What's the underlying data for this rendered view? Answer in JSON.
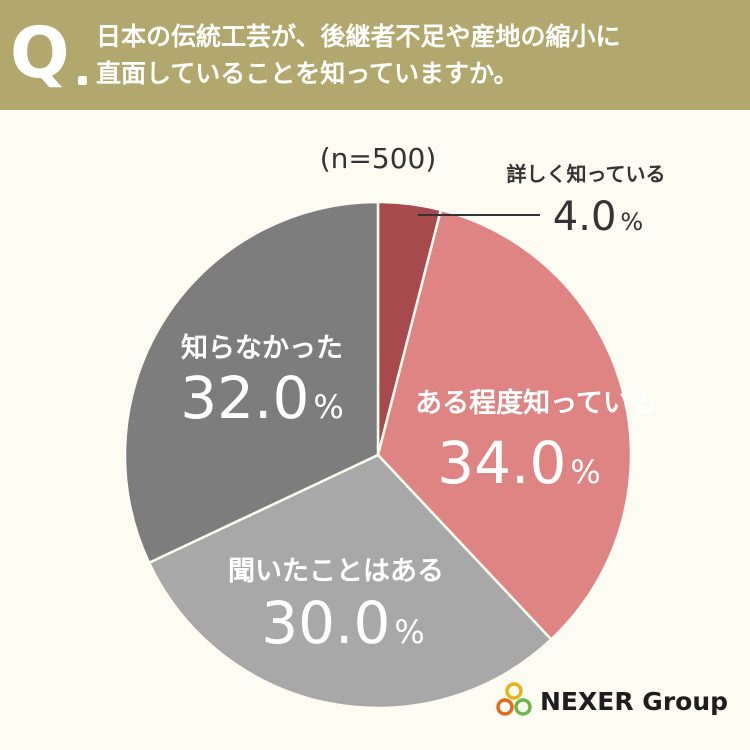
{
  "header": {
    "q_mark": "Q",
    "question_line1": "日本の伝統工芸が、後継者不足や産地の縮小に",
    "question_line2": "直面していることを知っていますか。"
  },
  "chart_data": {
    "type": "pie",
    "sample_size": "(n=500)",
    "slices": [
      {
        "label": "詳しく知っている",
        "value": 4.0,
        "display": "4.0",
        "color": "#a74a4d"
      },
      {
        "label": "ある程度知っている",
        "value": 34.0,
        "display": "34.0",
        "color": "#de8584"
      },
      {
        "label": "聞いたことはある",
        "value": 30.0,
        "display": "30.0",
        "color": "#a8a8a8"
      },
      {
        "label": "知らなかった",
        "value": 32.0,
        "display": "32.0",
        "color": "#7d7d7d"
      }
    ],
    "unit": "%"
  },
  "logo": {
    "text": "NEXER Group"
  }
}
